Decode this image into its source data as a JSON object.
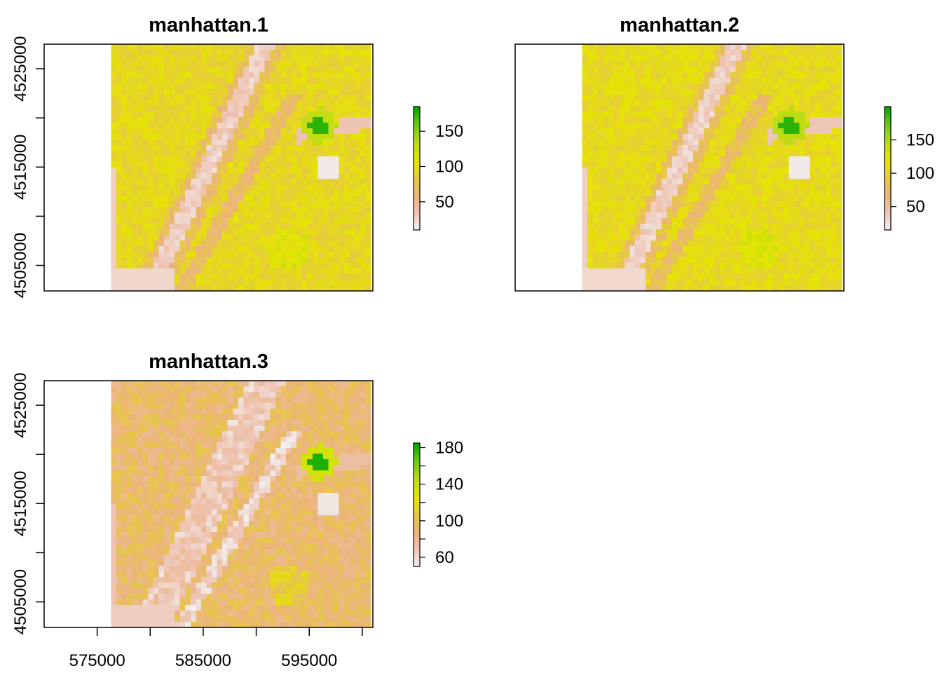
{
  "colors": {
    "ramp": [
      "#f2f2f2",
      "#eec4b4",
      "#ebb478",
      "#e6cc3c",
      "#e6e600",
      "#b8dc16",
      "#6cc80e",
      "#00a600"
    ],
    "frame": "#000000",
    "background": "#ffffff"
  },
  "chart_data": [
    {
      "type": "heatmap",
      "title": "manhattan.1",
      "xlabel": "",
      "ylabel": "",
      "xlim": [
        570000,
        601000
      ],
      "ylim": [
        4502400,
        4527500
      ],
      "extent": {
        "xmin": 576300,
        "xmax": 600800,
        "ymin": 4502400,
        "ymax": 4527500
      },
      "y_ticks": [
        4505000,
        4510000,
        4515000,
        4520000,
        4525000
      ],
      "y_tick_labels": [
        "4505000",
        "",
        "4515000",
        "",
        "4525000"
      ],
      "x_ticks": [],
      "x_tick_labels": [],
      "legend": {
        "range": [
          10,
          185
        ],
        "ticks": [
          50,
          100,
          150
        ],
        "tick_labels": [
          "50",
          "100",
          "150"
        ]
      },
      "base_value": 96,
      "hot_value": 175,
      "grid": false
    },
    {
      "type": "heatmap",
      "title": "manhattan.2",
      "xlabel": "",
      "ylabel": "",
      "xlim": [
        570000,
        601000
      ],
      "ylim": [
        4502400,
        4527500
      ],
      "extent": {
        "xmin": 576300,
        "xmax": 600800,
        "ymin": 4502400,
        "ymax": 4527500
      },
      "y_ticks": [],
      "y_tick_labels": [],
      "x_ticks": [],
      "x_tick_labels": [],
      "legend": {
        "range": [
          15,
          200
        ],
        "ticks": [
          50,
          100,
          150
        ],
        "tick_labels": [
          "50",
          "100",
          "150"
        ]
      },
      "base_value": 108,
      "hot_value": 190,
      "grid": false
    },
    {
      "type": "heatmap",
      "title": "manhattan.3",
      "xlabel": "",
      "ylabel": "",
      "xlim": [
        570000,
        601000
      ],
      "ylim": [
        4502400,
        4527500
      ],
      "extent": {
        "xmin": 576300,
        "xmax": 600800,
        "ymin": 4502400,
        "ymax": 4527500
      },
      "y_ticks": [
        4505000,
        4510000,
        4515000,
        4520000,
        4525000
      ],
      "y_tick_labels": [
        "4505000",
        "",
        "4515000",
        "",
        "4525000"
      ],
      "x_ticks": [
        575000,
        580000,
        585000,
        590000,
        595000,
        600000
      ],
      "x_tick_labels": [
        "575000",
        "",
        "585000",
        "",
        "595000",
        ""
      ],
      "legend": {
        "range": [
          50,
          185
        ],
        "ticks": [
          60,
          80,
          100,
          120,
          140,
          160,
          180
        ],
        "tick_labels": [
          "60",
          "",
          "100",
          "",
          "140",
          "",
          "180"
        ]
      },
      "base_value": 92,
      "hot_value": 180,
      "grid": false
    }
  ]
}
